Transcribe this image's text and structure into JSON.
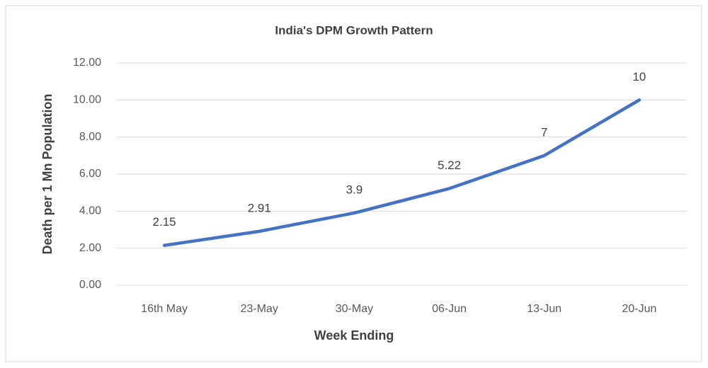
{
  "chart_data": {
    "type": "line",
    "title": "India's DPM Growth Pattern",
    "x_label": "Week Ending",
    "y_label": "Death per 1 Mn Population",
    "categories": [
      "16th May",
      "23-May",
      "30-May",
      "06-Jun",
      "13-Jun",
      "20-Jun"
    ],
    "series": [
      {
        "name": "DPM",
        "color": "#4472c4",
        "values": [
          2.15,
          2.91,
          3.9,
          5.22,
          7,
          10
        ]
      }
    ],
    "ylim": [
      0,
      12
    ],
    "yticks": [
      {
        "value": 0,
        "label": "0.00"
      },
      {
        "value": 2,
        "label": "2.00"
      },
      {
        "value": 4,
        "label": "4.00"
      },
      {
        "value": 6,
        "label": "6.00"
      },
      {
        "value": 8,
        "label": "8.00"
      },
      {
        "value": 10,
        "label": "10.00"
      },
      {
        "value": 12,
        "label": "12.00"
      }
    ],
    "grid": true
  }
}
